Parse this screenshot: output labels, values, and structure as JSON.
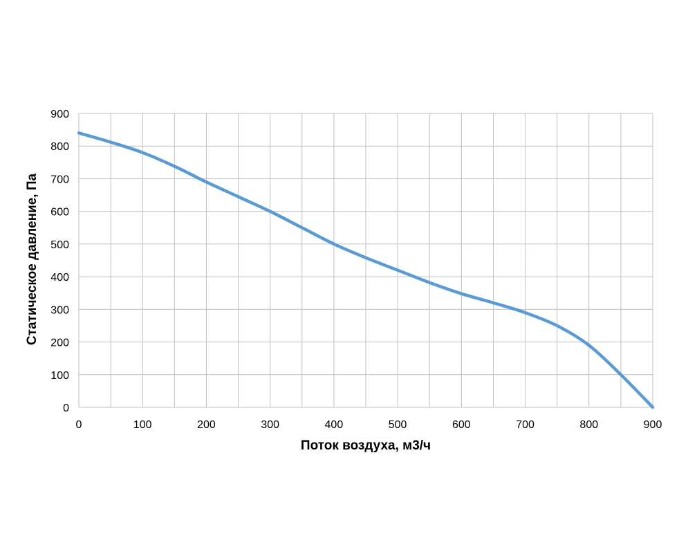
{
  "chart_data": {
    "type": "line",
    "title": "",
    "xlabel": "Поток воздуха, м3/ч",
    "ylabel": "Статическое давление, Па",
    "xlim": [
      0,
      900
    ],
    "ylim": [
      0,
      900
    ],
    "x_ticks": [
      "0",
      "100",
      "200",
      "300",
      "400",
      "500",
      "600",
      "700",
      "800",
      "900"
    ],
    "y_ticks": [
      "0",
      "100",
      "200",
      "300",
      "400",
      "500",
      "600",
      "700",
      "800",
      "900"
    ],
    "grid": true,
    "legend": "none",
    "series": [
      {
        "color": "#5b9bd5",
        "x": [
          0,
          50,
          100,
          150,
          200,
          250,
          300,
          350,
          400,
          450,
          500,
          550,
          600,
          650,
          700,
          750,
          800,
          850,
          900
        ],
        "values": [
          840,
          812,
          780,
          738,
          690,
          645,
          600,
          550,
          500,
          458,
          420,
          382,
          348,
          320,
          290,
          250,
          190,
          100,
          0
        ]
      }
    ]
  }
}
